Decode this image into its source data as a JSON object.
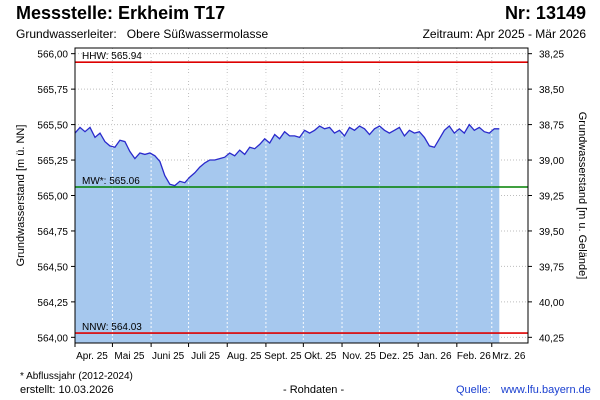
{
  "header": {
    "title": "Messstelle: Erkheim T17",
    "nr": "Nr: 13149",
    "aquifer_label": "Grundwasserleiter:",
    "aquifer_value": "Obere Süßwassermolasse",
    "period": "Zeitraum: Apr 2025 - Mär 2026"
  },
  "footer": {
    "footnote": "* Abflussjahr (2012-2024)",
    "created": "erstellt:  10.03.2026",
    "rawdata": "- Rohdaten -",
    "source_label": "Quelle:",
    "source_link": "www.lfu.bayern.de"
  },
  "colors": {
    "fill": "#a6c8ee",
    "line": "#2a2acc",
    "hhw": "#dd0000",
    "mw": "#008000",
    "nnw": "#dd0000",
    "grid": "#bdbdbd",
    "vgrid": "#ffffff"
  },
  "chart_data": {
    "type": "area",
    "ylabel_left": "Grundwasserstand [m ü. NN]",
    "ylabel_right": "Grundwasserstand [m u. Gelände]",
    "ylim": [
      563.96,
      566.04
    ],
    "yticks_left": [
      {
        "v": 566.0,
        "label": "566,00"
      },
      {
        "v": 565.75,
        "label": "565,75"
      },
      {
        "v": 565.5,
        "label": "565,50"
      },
      {
        "v": 565.25,
        "label": "565,25"
      },
      {
        "v": 565.0,
        "label": "565,00"
      },
      {
        "v": 564.75,
        "label": "564,75"
      },
      {
        "v": 564.5,
        "label": "564,50"
      },
      {
        "v": 564.25,
        "label": "564,25"
      },
      {
        "v": 564.0,
        "label": "564,00"
      }
    ],
    "yticks_right": [
      {
        "v": 38.25,
        "label": "38,25"
      },
      {
        "v": 38.5,
        "label": "38,50"
      },
      {
        "v": 38.75,
        "label": "38,75"
      },
      {
        "v": 39.0,
        "label": "39,00"
      },
      {
        "v": 39.25,
        "label": "39,25"
      },
      {
        "v": 39.5,
        "label": "39,50"
      },
      {
        "v": 39.75,
        "label": "39,75"
      },
      {
        "v": 40.0,
        "label": "40,00"
      },
      {
        "v": 40.25,
        "label": "40,25"
      }
    ],
    "xlim": [
      "2025-04-01",
      "2026-03-10"
    ],
    "xticks": [
      {
        "date": "2025-04-01",
        "label": "Apr. 25"
      },
      {
        "date": "2025-05-01",
        "label": "Mai 25"
      },
      {
        "date": "2025-06-01",
        "label": "Juni 25"
      },
      {
        "date": "2025-07-01",
        "label": "Juli 25"
      },
      {
        "date": "2025-08-01",
        "label": "Aug. 25"
      },
      {
        "date": "2025-09-01",
        "label": "Sept. 25"
      },
      {
        "date": "2025-10-01",
        "label": "Okt. 25"
      },
      {
        "date": "2025-11-01",
        "label": "Nov. 25"
      },
      {
        "date": "2025-12-01",
        "label": "Dez. 25"
      },
      {
        "date": "2026-01-01",
        "label": "Jan. 26"
      },
      {
        "date": "2026-02-01",
        "label": "Feb. 26"
      },
      {
        "date": "2026-03-01",
        "label": "Mrz. 26"
      }
    ],
    "reference_lines": [
      {
        "key": "hhw",
        "name": "HHW",
        "value": 565.94,
        "label": "HHW: 565.94"
      },
      {
        "key": "mw",
        "name": "MW*",
        "value": 565.06,
        "label": "MW*: 565.06"
      },
      {
        "key": "nnw",
        "name": "NNW",
        "value": 564.03,
        "label": "NNW: 564.03"
      }
    ],
    "series": [
      {
        "x": [
          "2025-04-01",
          "2025-04-05",
          "2025-04-09",
          "2025-04-13",
          "2025-04-17",
          "2025-04-21",
          "2025-04-25",
          "2025-04-29",
          "2025-05-03",
          "2025-05-07",
          "2025-05-11",
          "2025-05-15",
          "2025-05-19",
          "2025-05-23",
          "2025-05-27",
          "2025-05-31",
          "2025-06-04",
          "2025-06-08",
          "2025-06-12",
          "2025-06-16",
          "2025-06-20",
          "2025-06-24",
          "2025-06-28",
          "2025-07-02",
          "2025-07-06",
          "2025-07-10",
          "2025-07-14",
          "2025-07-18",
          "2025-07-22",
          "2025-07-26",
          "2025-07-30",
          "2025-08-03",
          "2025-08-07",
          "2025-08-11",
          "2025-08-15",
          "2025-08-19",
          "2025-08-23",
          "2025-08-27",
          "2025-08-31",
          "2025-09-04",
          "2025-09-08",
          "2025-09-12",
          "2025-09-16",
          "2025-09-20",
          "2025-09-24",
          "2025-09-28",
          "2025-10-02",
          "2025-10-06",
          "2025-10-10",
          "2025-10-14",
          "2025-10-18",
          "2025-10-22",
          "2025-10-26",
          "2025-10-30",
          "2025-11-03",
          "2025-11-07",
          "2025-11-11",
          "2025-11-15",
          "2025-11-19",
          "2025-11-23",
          "2025-11-27",
          "2025-12-01",
          "2025-12-05",
          "2025-12-09",
          "2025-12-13",
          "2025-12-17",
          "2025-12-21",
          "2025-12-25",
          "2025-12-29",
          "2026-01-02",
          "2026-01-06",
          "2026-01-10",
          "2026-01-14",
          "2026-01-18",
          "2026-01-22",
          "2026-01-26",
          "2026-01-30",
          "2026-02-03",
          "2026-02-07",
          "2026-02-11",
          "2026-02-15",
          "2026-02-19",
          "2026-02-23",
          "2026-02-27",
          "2026-03-03",
          "2026-03-07"
        ],
        "y": [
          565.44,
          565.48,
          565.45,
          565.48,
          565.41,
          565.44,
          565.38,
          565.35,
          565.34,
          565.39,
          565.38,
          565.31,
          565.26,
          565.3,
          565.29,
          565.3,
          565.28,
          565.24,
          565.14,
          565.08,
          565.07,
          565.1,
          565.09,
          565.13,
          565.16,
          565.2,
          565.23,
          565.25,
          565.25,
          565.26,
          565.27,
          565.3,
          565.28,
          565.32,
          565.29,
          565.34,
          565.33,
          565.36,
          565.4,
          565.37,
          565.43,
          565.4,
          565.45,
          565.42,
          565.42,
          565.41,
          565.46,
          565.44,
          565.46,
          565.49,
          565.47,
          565.48,
          565.44,
          565.46,
          565.42,
          565.48,
          565.46,
          565.49,
          565.47,
          565.43,
          565.47,
          565.49,
          565.46,
          565.44,
          565.46,
          565.48,
          565.42,
          565.46,
          565.44,
          565.45,
          565.41,
          565.35,
          565.34,
          565.4,
          565.46,
          565.49,
          565.44,
          565.47,
          565.44,
          565.5,
          565.46,
          565.48,
          565.45,
          565.44,
          565.47,
          565.47
        ]
      }
    ]
  }
}
